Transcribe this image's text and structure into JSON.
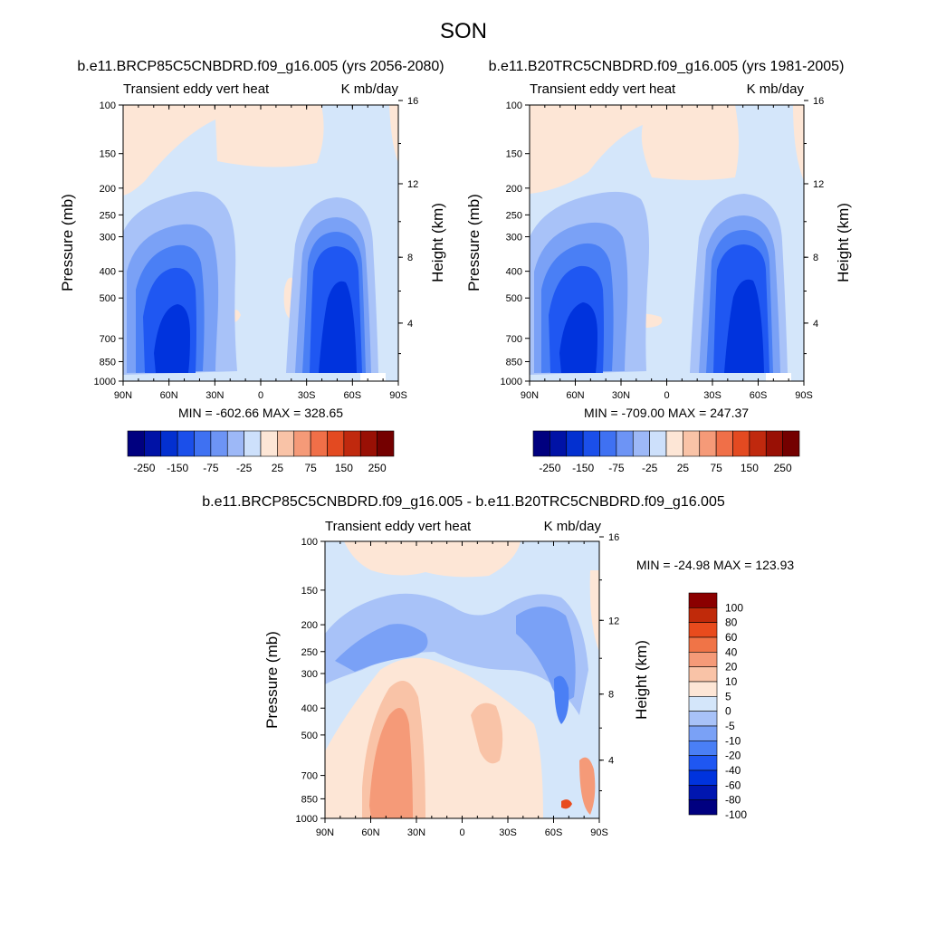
{
  "title": "SON",
  "panels": [
    {
      "id": "top-left",
      "case_title": "b.e11.BRCP85C5CNBDRD.f09_g16.005 (yrs 2056-2080)",
      "left_label": "Transient eddy vert heat",
      "right_label": "K mb/day",
      "min_max": "MIN = -602.66  MAX = 328.65"
    },
    {
      "id": "top-right",
      "case_title": "b.e11.B20TRC5CNBDRD.f09_g16.005 (yrs 1981-2005)",
      "left_label": "Transient eddy vert heat",
      "right_label": "K mb/day",
      "min_max": "MIN = -709.00  MAX = 247.37"
    },
    {
      "id": "bottom",
      "case_title": "b.e11.BRCP85C5CNBDRD.f09_g16.005 - b.e11.B20TRC5CNBDRD.f09_g16.005",
      "left_label": "Transient eddy vert heat",
      "right_label": "K mb/day",
      "min_max": "MIN = -24.98  MAX = 123.93"
    }
  ],
  "colors": {
    "top_scale": [
      "#00007f",
      "#0012a6",
      "#0330d0",
      "#1b4fea",
      "#3f71f2",
      "#6d94f5",
      "#9db8f7",
      "#cde0fb",
      "#fde6d6",
      "#f9c3a7",
      "#f59a78",
      "#f06f48",
      "#e34a21",
      "#c0290e",
      "#991005",
      "#740000"
    ],
    "diff_scale": [
      "#000080",
      "#0016b0",
      "#0033dd",
      "#1f57f2",
      "#4a7ff5",
      "#7aa1f6",
      "#a8c2f8",
      "#d4e6fa",
      "#fde6d6",
      "#f9c3a7",
      "#f59a78",
      "#f07447",
      "#e84b1d",
      "#c02a0a",
      "#8b0000"
    ]
  },
  "chart_data": [
    {
      "type": "heatmap",
      "title": "b.e11.BRCP85C5CNBDRD.f09_g16.005 (yrs 2056-2080)",
      "xlabel": "",
      "ylabel": "Pressure (mb)",
      "ylabel_right": "Height (km)",
      "x_ticks": [
        "90N",
        "60N",
        "30N",
        "0",
        "30S",
        "60S",
        "90S"
      ],
      "y_ticks": [
        "100",
        "150",
        "200",
        "250",
        "300",
        "400",
        "500",
        "700",
        "850",
        "1000"
      ],
      "y_right_ticks": [
        "16",
        "12",
        "8",
        "4"
      ],
      "colorbar_labels": [
        "-250",
        "-150",
        "-75",
        "-25",
        "25",
        "75",
        "150",
        "250"
      ],
      "min": -602.66,
      "max": 328.65
    },
    {
      "type": "heatmap",
      "title": "b.e11.B20TRC5CNBDRD.f09_g16.005 (yrs 1981-2005)",
      "xlabel": "",
      "ylabel": "Pressure (mb)",
      "ylabel_right": "Height (km)",
      "x_ticks": [
        "90N",
        "60N",
        "30N",
        "0",
        "30S",
        "60S",
        "90S"
      ],
      "y_ticks": [
        "100",
        "150",
        "200",
        "250",
        "300",
        "400",
        "500",
        "700",
        "850",
        "1000"
      ],
      "y_right_ticks": [
        "16",
        "12",
        "8",
        "4"
      ],
      "colorbar_labels": [
        "-250",
        "-150",
        "-75",
        "-25",
        "25",
        "75",
        "150",
        "250"
      ],
      "min": -709.0,
      "max": 247.37
    },
    {
      "type": "heatmap",
      "title": "b.e11.BRCP85C5CNBDRD.f09_g16.005 - b.e11.B20TRC5CNBDRD.f09_g16.005",
      "xlabel": "",
      "ylabel": "Pressure (mb)",
      "ylabel_right": "Height (km)",
      "x_ticks": [
        "90N",
        "60N",
        "30N",
        "0",
        "30S",
        "60S",
        "90S"
      ],
      "y_ticks": [
        "100",
        "150",
        "200",
        "250",
        "300",
        "400",
        "500",
        "700",
        "850",
        "1000"
      ],
      "y_right_ticks": [
        "16",
        "12",
        "8",
        "4"
      ],
      "colorbar_labels": [
        "100",
        "80",
        "60",
        "40",
        "20",
        "10",
        "5",
        "0",
        "-5",
        "-10",
        "-20",
        "-40",
        "-60",
        "-80",
        "-100"
      ],
      "min": -24.98,
      "max": 123.93
    }
  ]
}
